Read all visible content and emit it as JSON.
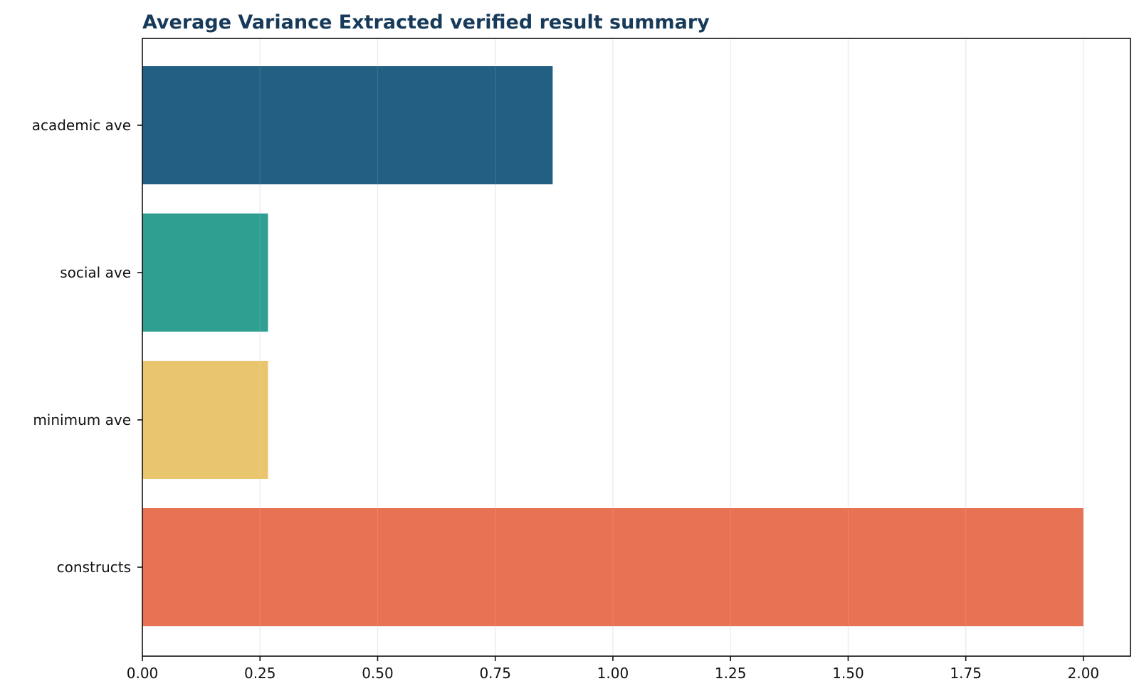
{
  "chart_data": {
    "type": "bar",
    "orientation": "horizontal",
    "title": "Average Variance Extracted verified result summary",
    "xlabel": "",
    "ylabel": "",
    "categories": [
      "academic ave",
      "social ave",
      "minimum ave",
      "constructs"
    ],
    "values": [
      0.872,
      0.267,
      0.267,
      2.0
    ],
    "colors": [
      "#1f5b81",
      "#2a9d8f",
      "#e9c46a",
      "#e76f51"
    ],
    "xlim": [
      0,
      2.1
    ],
    "xticks": [
      0.0,
      0.25,
      0.5,
      0.75,
      1.0,
      1.25,
      1.5,
      1.75,
      2.0
    ],
    "xtick_labels": [
      "0.00",
      "0.25",
      "0.50",
      "0.75",
      "1.00",
      "1.25",
      "1.50",
      "1.75",
      "2.00"
    ],
    "grid": "x",
    "legend": "none"
  }
}
